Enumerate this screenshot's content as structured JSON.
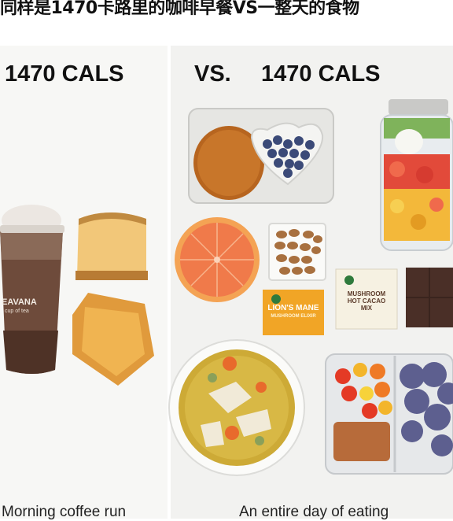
{
  "header": {
    "title": "同样是1470卡路里的咖啡早餐VS一整天的食物"
  },
  "left_panel": {
    "calories": "1470 CALS",
    "caption": "Morning coffee run",
    "cup_brand": "EAVANA",
    "cup_subtext": "cup of tea"
  },
  "right_panel": {
    "vs": "VS.",
    "calories": "1470 CALS",
    "caption": "An entire day of eating"
  },
  "packages": {
    "lions_mane": "LION'S MANE",
    "lions_mane_sub": "MUSHROOM ELIXIR",
    "cacao": "MUSHROOM HOT CACAO MIX"
  },
  "colors": {
    "orange": "#f08a4b",
    "blueberry": "#3b4a78",
    "almond": "#a8703f",
    "pkg_orange": "#f1a526",
    "chocolate": "#4a2f27"
  }
}
